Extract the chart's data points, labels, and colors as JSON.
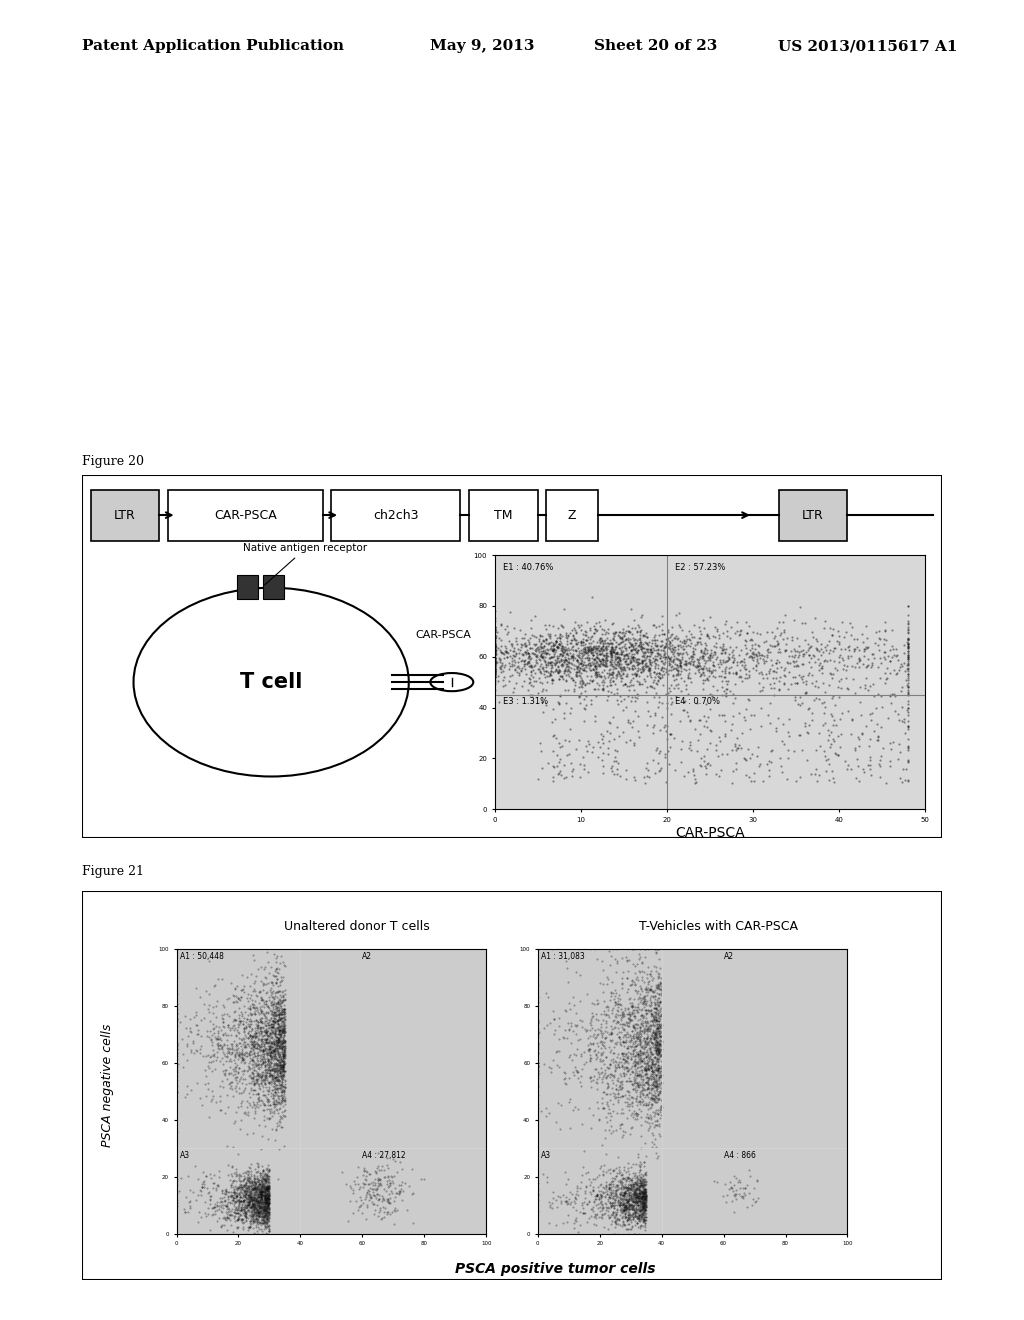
{
  "header_text": "Patent Application Publication",
  "header_date": "May 9, 2013",
  "header_sheet": "Sheet 20 of 23",
  "header_patent": "US 2013/0115617 A1",
  "fig20_label": "Figure 20",
  "fig21_label": "Figure 21",
  "ltr_bar": [
    "LTR",
    "CAR-PSCA",
    "ch2ch3",
    "TM",
    "Z",
    "LTR"
  ],
  "flow_quadrants_fig20": {
    "E1": "E1 : 40.76%",
    "E2": "E2 : 57.23%",
    "E3": "E3 : 1.31%",
    "E4": "E4 : 0.70%"
  },
  "flow_xlabel_fig20": "CAR-PSCA",
  "fig21_title_left": "Unaltered donor T cells",
  "fig21_title_right": "T-Vehicles with CAR-PSCA",
  "fig21_ylabel": "PSCA negative cells",
  "fig21_xlabel": "PSCA positive tumor cells",
  "flow_quadrants_fig21_left": {
    "A1": "A1 : 50,448",
    "A2": "A2",
    "A3": "A3",
    "A4": "A4 : 27,812"
  },
  "flow_quadrants_fig21_right": {
    "A1": "A1 : 31,083",
    "A2": "A2",
    "A3": "A3",
    "A4": "A4 : 866"
  },
  "bg_color": "#ffffff",
  "panel_bg": "#f0f0f0",
  "plot_bg": "#e8e8e8"
}
